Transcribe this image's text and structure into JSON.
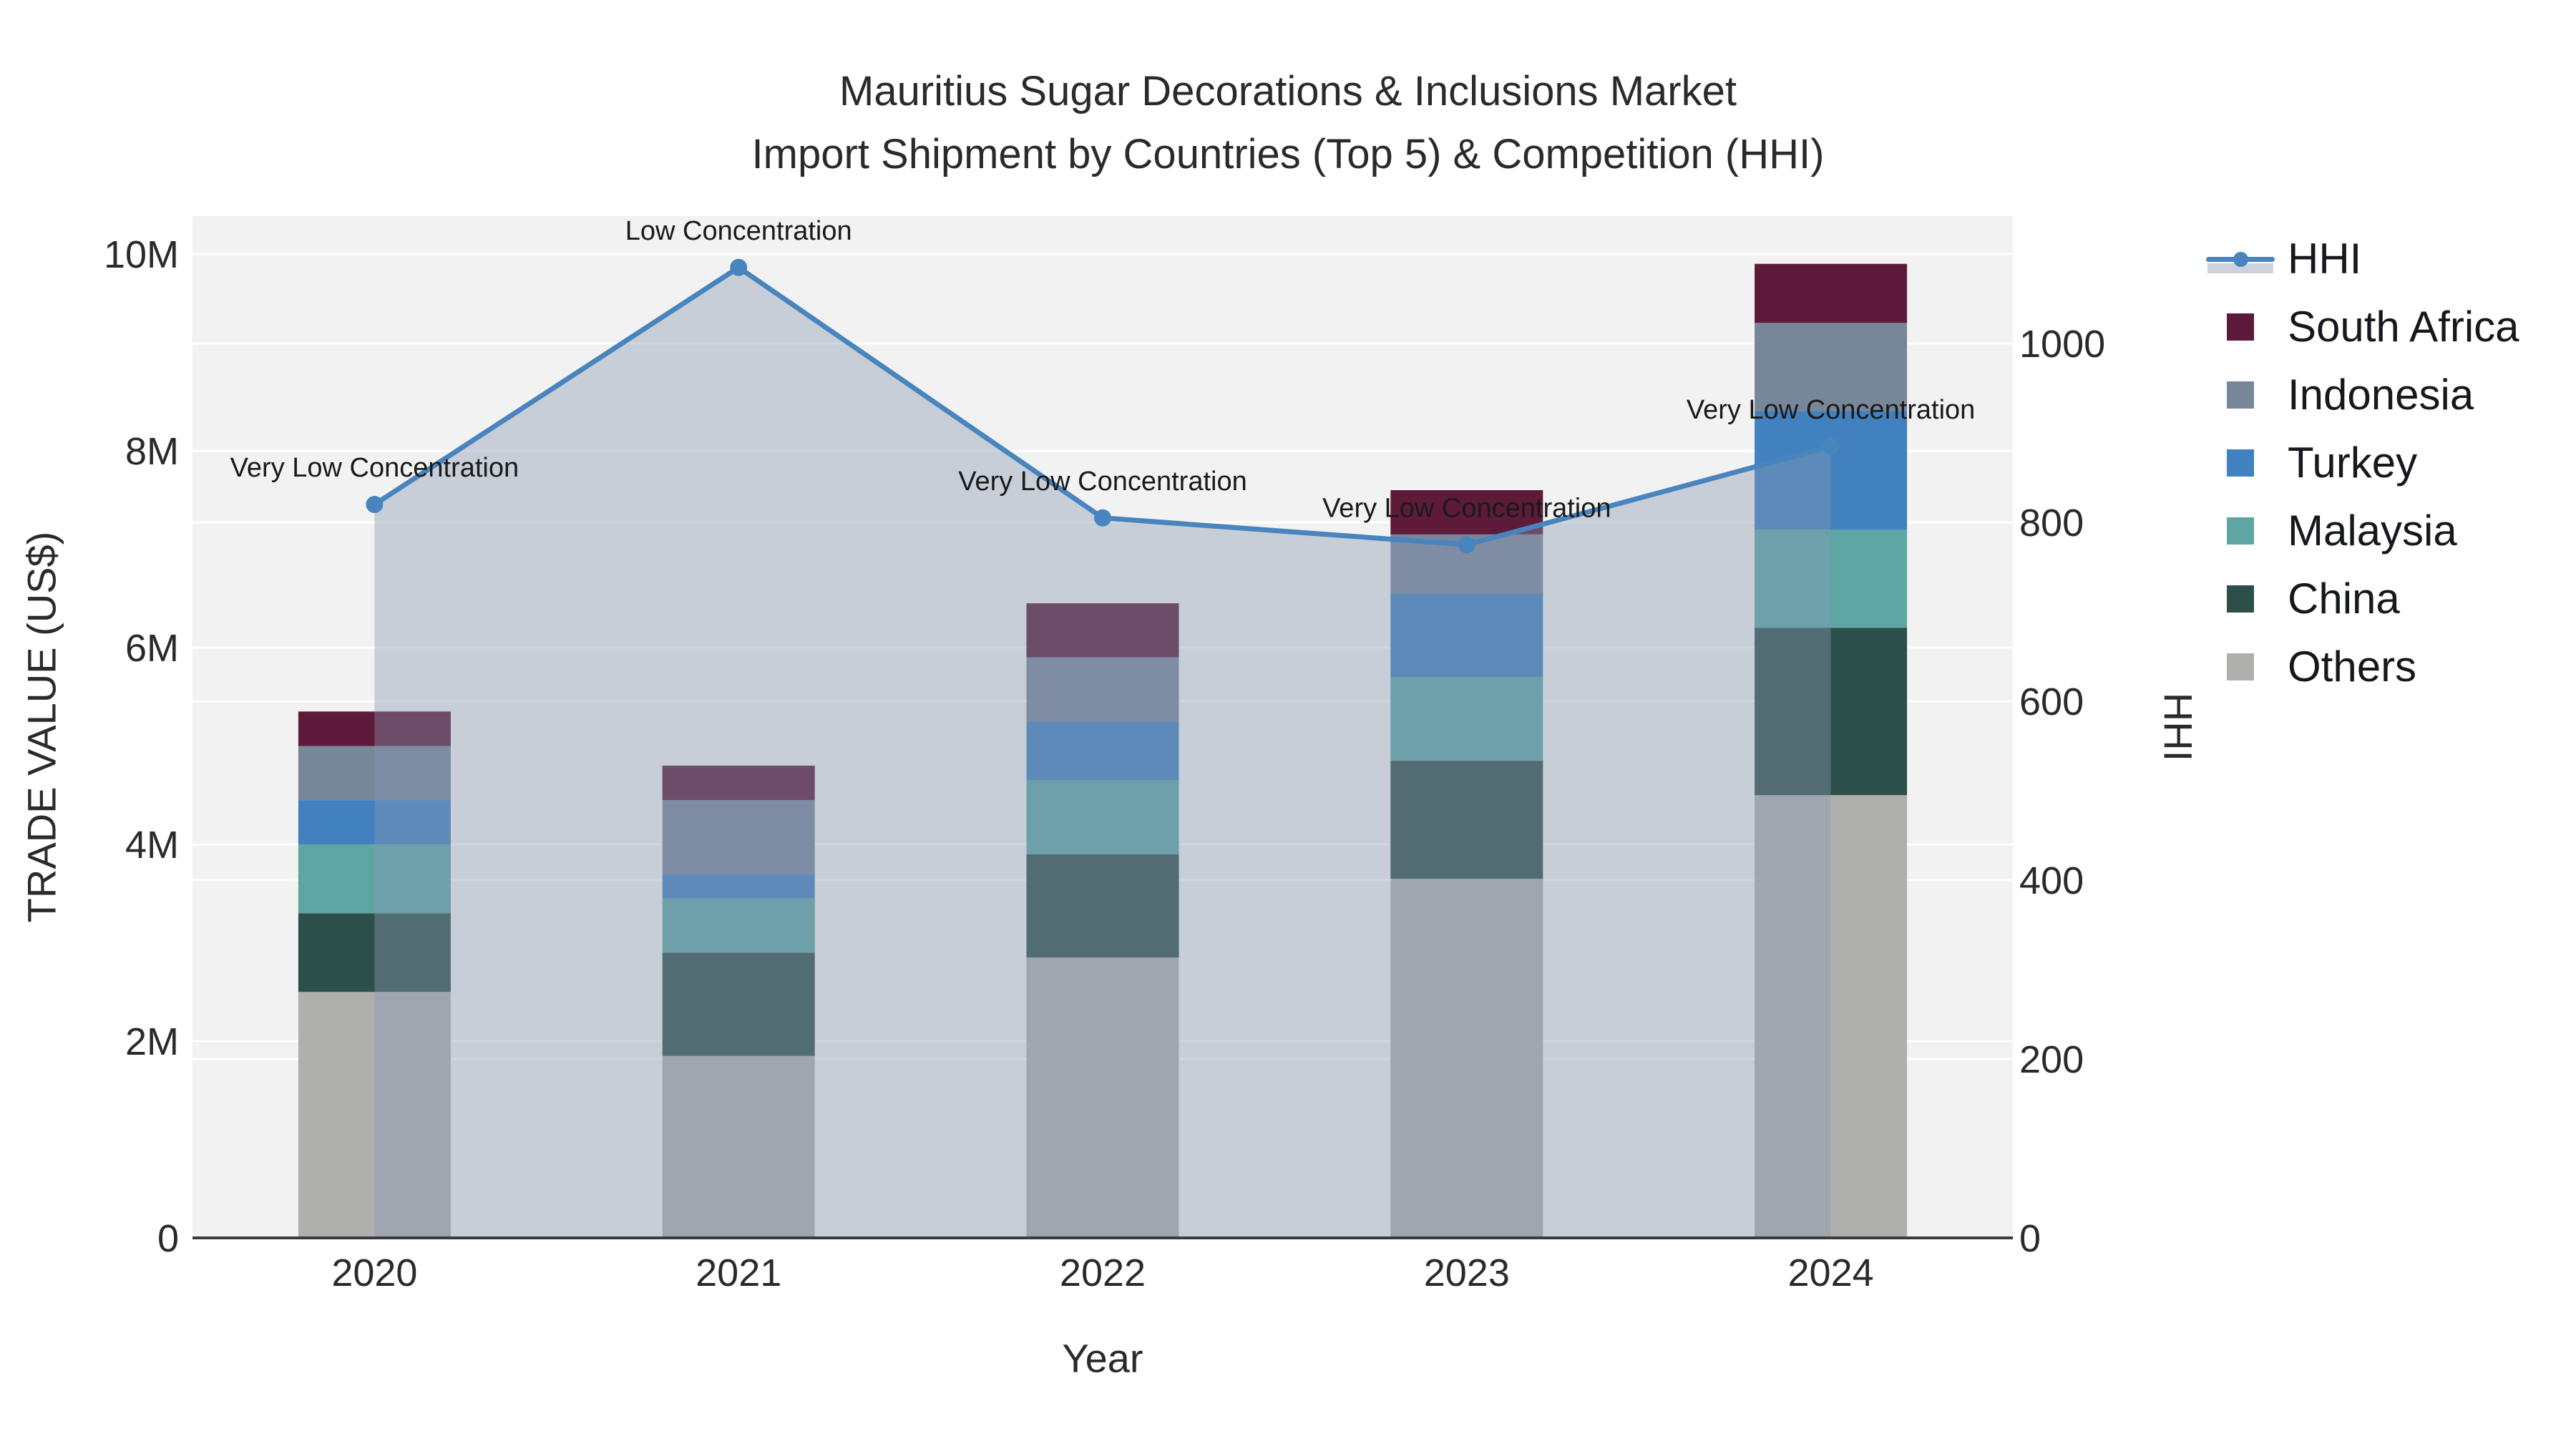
{
  "title": {
    "line1": "Mauritius Sugar Decorations & Inclusions Market",
    "line2": "Import Shipment by Countries (Top 5) & Competition (HHI)"
  },
  "axes": {
    "x": {
      "title": "Year",
      "categories": [
        "2020",
        "2021",
        "2022",
        "2023",
        "2024"
      ]
    },
    "y_left": {
      "title": "TRADE VALUE (US$)",
      "ticks": [
        {
          "label": "0",
          "value": 0
        },
        {
          "label": "2M",
          "value": 2
        },
        {
          "label": "4M",
          "value": 4
        },
        {
          "label": "6M",
          "value": 6
        },
        {
          "label": "8M",
          "value": 8
        },
        {
          "label": "10M",
          "value": 10
        }
      ]
    },
    "y_right": {
      "title": "HHI",
      "ticks": [
        {
          "label": "0",
          "value": 0
        },
        {
          "label": "200",
          "value": 200
        },
        {
          "label": "400",
          "value": 400
        },
        {
          "label": "600",
          "value": 600
        },
        {
          "label": "800",
          "value": 800
        },
        {
          "label": "1000",
          "value": 1000
        }
      ]
    }
  },
  "legend": {
    "items": [
      {
        "label": "HHI",
        "type": "line",
        "color": "#4884bd"
      },
      {
        "label": "South Africa",
        "type": "square",
        "color": "#5d1a39"
      },
      {
        "label": "Indonesia",
        "type": "square",
        "color": "#78869a"
      },
      {
        "label": "Turkey",
        "type": "square",
        "color": "#4181bf"
      },
      {
        "label": "Malaysia",
        "type": "square",
        "color": "#5ea5a3"
      },
      {
        "label": "China",
        "type": "square",
        "color": "#2d4f49"
      },
      {
        "label": "Others",
        "type": "square",
        "color": "#afb0ae"
      }
    ]
  },
  "colors": {
    "plot_bg": "#f2f2f2",
    "grid": "#ffffff",
    "axis_line": "#3b3b3b",
    "tick_text": "#2a2a2a",
    "annotation_text": "#1a1a1a",
    "hhi_line": "#4884bd",
    "hhi_fill": "rgba(136,152,178,0.4)"
  },
  "chart_data": {
    "type": "bar+line",
    "title": "Mauritius Sugar Decorations & Inclusions Market — Import Shipment by Countries (Top 5) & Competition (HHI)",
    "categories": [
      "2020",
      "2021",
      "2022",
      "2023",
      "2024"
    ],
    "bar_unit": "million US$",
    "stack_order": "bottom to top as listed",
    "series": [
      {
        "name": "Others",
        "color": "#afb0ae",
        "values": [
          2.5,
          1.85,
          2.85,
          3.65,
          4.5
        ]
      },
      {
        "name": "China",
        "color": "#2d4f49",
        "values": [
          0.8,
          1.05,
          1.05,
          1.2,
          1.7
        ]
      },
      {
        "name": "Malaysia",
        "color": "#5ea5a3",
        "values": [
          0.7,
          0.55,
          0.75,
          0.85,
          1.0
        ]
      },
      {
        "name": "Turkey",
        "color": "#4181bf",
        "values": [
          0.45,
          0.25,
          0.6,
          0.85,
          1.2
        ]
      },
      {
        "name": "Indonesia",
        "color": "#78869a",
        "values": [
          0.55,
          0.75,
          0.65,
          0.6,
          0.9
        ]
      },
      {
        "name": "South Africa",
        "color": "#5d1a39",
        "values": [
          0.35,
          0.35,
          0.55,
          0.45,
          0.6
        ]
      }
    ],
    "bar_totals": [
      5.35,
      4.8,
      6.45,
      7.6,
      9.9
    ],
    "hhi": {
      "name": "HHI",
      "axis": "right",
      "color": "#4884bd",
      "values": [
        820,
        1085,
        805,
        775,
        885
      ],
      "annotations": [
        "Very Low Concentration",
        "Low Concentration",
        "Very Low Concentration",
        "Very Low Concentration",
        "Very Low Concentration"
      ]
    },
    "xlabel": "Year",
    "ylabel_left": "TRADE VALUE (US$)",
    "ylabel_right": "HHI",
    "y_left_range": [
      0,
      10.4
    ],
    "y_right_range": [
      0,
      1142
    ],
    "grid": "horizontal, both axes",
    "legend_position": "right"
  }
}
